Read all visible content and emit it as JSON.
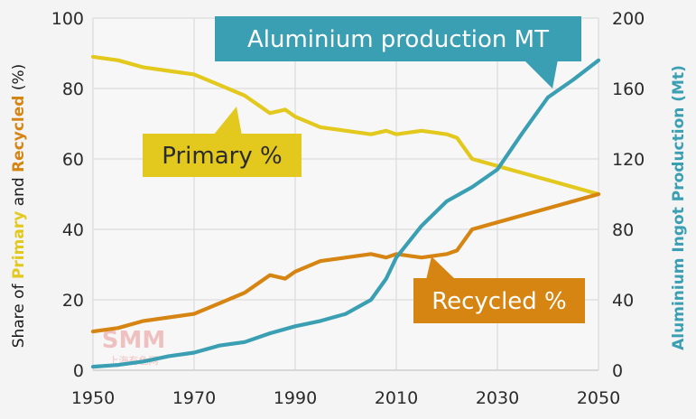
{
  "chart_data": {
    "type": "line",
    "title": "",
    "xlabel": "",
    "xlim": [
      1950,
      2050
    ],
    "x_ticks": [
      "1950",
      "1970",
      "1990",
      "2010",
      "2030",
      "2050"
    ],
    "left_axis": {
      "label_parts": [
        {
          "text": "Share of ",
          "color": "#1a1a1a"
        },
        {
          "text": "Primary",
          "color": "#e3c81e"
        },
        {
          "text": " and ",
          "color": "#1a1a1a"
        },
        {
          "text": "Recycled",
          "color": "#d68512"
        },
        {
          "text": " (%)",
          "color": "#1a1a1a"
        }
      ],
      "ylim": [
        0,
        100
      ],
      "ticks": [
        "0",
        "20",
        "40",
        "60",
        "80",
        "100"
      ]
    },
    "right_axis": {
      "label": "Aluminium Ingot Production (Mt)",
      "color": "#3a9fb2",
      "ylim": [
        0,
        200
      ],
      "ticks": [
        "0",
        "40",
        "80",
        "120",
        "160",
        "200"
      ]
    },
    "series": [
      {
        "name": "Primary %",
        "axis": "left",
        "color": "#e3c81e",
        "x": [
          1950,
          1955,
          1960,
          1965,
          1970,
          1975,
          1980,
          1983,
          1985,
          1988,
          1990,
          1995,
          2000,
          2005,
          2008,
          2010,
          2015,
          2020,
          2022,
          2025,
          2030,
          2035,
          2040,
          2045,
          2050
        ],
        "values": [
          89,
          88,
          86,
          85,
          84,
          81,
          78,
          75,
          73,
          74,
          72,
          69,
          68,
          67,
          68,
          67,
          68,
          67,
          66,
          60,
          58,
          56,
          54,
          52,
          50
        ]
      },
      {
        "name": "Recycled %",
        "axis": "left",
        "color": "#d68512",
        "x": [
          1950,
          1955,
          1960,
          1965,
          1970,
          1975,
          1980,
          1983,
          1985,
          1988,
          1990,
          1995,
          2000,
          2005,
          2008,
          2010,
          2015,
          2020,
          2022,
          2025,
          2030,
          2035,
          2040,
          2045,
          2050
        ],
        "values": [
          11,
          12,
          14,
          15,
          16,
          19,
          22,
          25,
          27,
          26,
          28,
          31,
          32,
          33,
          32,
          33,
          32,
          33,
          34,
          40,
          42,
          44,
          46,
          48,
          50
        ]
      },
      {
        "name": "Aluminium production MT",
        "axis": "right",
        "color": "#3a9fb2",
        "x": [
          1950,
          1955,
          1960,
          1965,
          1970,
          1975,
          1980,
          1985,
          1990,
          1995,
          2000,
          2005,
          2008,
          2010,
          2015,
          2020,
          2025,
          2030,
          2035,
          2040,
          2045,
          2050
        ],
        "values": [
          2,
          3,
          5,
          8,
          10,
          14,
          16,
          21,
          25,
          28,
          32,
          40,
          52,
          64,
          82,
          96,
          104,
          114,
          135,
          155,
          165,
          176
        ]
      }
    ],
    "annotations": [
      {
        "text": "Aluminium production MT",
        "series": "Aluminium production MT",
        "color": "#3a9fb2"
      },
      {
        "text": "Primary %",
        "series": "Primary %",
        "color": "#e3c81e"
      },
      {
        "text": "Recycled %",
        "series": "Recycled %",
        "color": "#d68512"
      }
    ],
    "grid": true
  },
  "watermark": {
    "logo_text": "SMM",
    "sub_text": "上海有色网"
  }
}
